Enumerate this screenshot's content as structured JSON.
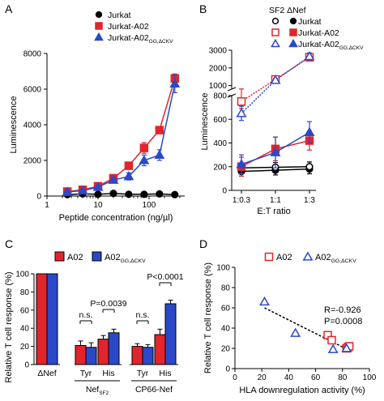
{
  "chart_data": [
    {
      "panel": "A",
      "type": "line",
      "xlabel": "Peptide concentration (ng/µl)",
      "ylabel": "Luminescence",
      "xscale": "log",
      "xlim": [
        1,
        500
      ],
      "ylim": [
        0,
        8000
      ],
      "x_ticks": [
        "1",
        "10",
        "100"
      ],
      "y_ticks": [
        "0",
        "2000",
        "4000",
        "6000",
        "8000"
      ],
      "legend_position": "top-left",
      "series": [
        {
          "name": "Jurkat",
          "marker": "circle-filled",
          "color": "#000000",
          "x": [
            2.5,
            5,
            10,
            20,
            40,
            80,
            160,
            320
          ],
          "y": [
            80,
            120,
            100,
            150,
            100,
            100,
            120,
            80
          ],
          "err": [
            40,
            40,
            40,
            40,
            40,
            40,
            40,
            40
          ]
        },
        {
          "name": "Jurkat-A02",
          "marker": "square-filled",
          "color": "#e2252b",
          "x": [
            2.5,
            5,
            10,
            20,
            40,
            80,
            160,
            320
          ],
          "y": [
            250,
            350,
            550,
            1000,
            1700,
            2700,
            3700,
            6600
          ],
          "err": [
            80,
            80,
            100,
            150,
            200,
            300,
            200,
            250
          ]
        },
        {
          "name": "Jurkat-A02",
          "name_sub": "GG,ΔCKV",
          "marker": "triangle-filled",
          "color": "#2a49c9",
          "x": [
            2.5,
            5,
            10,
            20,
            40,
            80,
            160,
            320
          ],
          "y": [
            230,
            300,
            500,
            900,
            1100,
            2000,
            2300,
            6300
          ],
          "err": [
            80,
            80,
            100,
            150,
            200,
            300,
            300,
            500
          ]
        }
      ]
    },
    {
      "panel": "B",
      "type": "line",
      "xlabel": "E:T ratio",
      "ylabel": "Luminescence",
      "categories": [
        "1:0.3",
        "1:1",
        "1:3"
      ],
      "ylim_lower": [
        0,
        800
      ],
      "ylim_upper": [
        800,
        3000
      ],
      "y_ticks_lower": [
        "0",
        "200",
        "400",
        "600",
        "800"
      ],
      "y_ticks_upper": [
        "1000",
        "2000",
        "3000"
      ],
      "legend_title": "SF2 ΔNef",
      "legend_position": "top-right",
      "series": [
        {
          "name": "Jurkat",
          "marker": "circle",
          "filled": true,
          "color": "#000000",
          "values": [
            160,
            170,
            180
          ],
          "err": [
            40,
            40,
            40
          ]
        },
        {
          "name": "Jurkat",
          "marker": "circle",
          "filled": false,
          "color": "#000000",
          "values": [
            190,
            195,
            200
          ],
          "err": [
            40,
            40,
            40
          ]
        },
        {
          "name": "Jurkat-A02",
          "marker": "square",
          "filled": true,
          "color": "#e2252b",
          "values": [
            200,
            350,
            420
          ],
          "err": [
            80,
            100,
            80
          ]
        },
        {
          "name": "Jurkat-A02",
          "marker": "square",
          "filled": false,
          "color": "#e2252b",
          "values": [
            750,
            1350,
            2600
          ],
          "err": [
            60,
            100,
            200
          ]
        },
        {
          "name": "Jurkat-A02",
          "name_sub": "GG,ΔCKV",
          "marker": "triangle",
          "filled": true,
          "color": "#2a49c9",
          "values": [
            220,
            320,
            490
          ],
          "err": [
            80,
            130,
            90
          ]
        },
        {
          "name": "Jurkat-A02",
          "name_sub": "GG,ΔCKV",
          "marker": "triangle",
          "filled": false,
          "color": "#2a49c9",
          "values": [
            650,
            1300,
            2650
          ],
          "err": [
            60,
            100,
            200
          ]
        }
      ]
    },
    {
      "panel": "C",
      "type": "bar",
      "ylabel": "Relative T cell response (%)",
      "ylim": [
        0,
        100
      ],
      "y_ticks": [
        "0",
        "20",
        "40",
        "60",
        "80",
        "100"
      ],
      "legend_position": "top-center",
      "categories": [
        "ΔNef",
        "Tyr",
        "His",
        "Tyr",
        "His"
      ],
      "groups": [
        {
          "label": "Nef",
          "label_sub": "SF2",
          "from": 1,
          "to": 2
        },
        {
          "label": "CP66-Nef",
          "from": 3,
          "to": 4
        }
      ],
      "series": [
        {
          "name": "A02",
          "color": "#e2252b",
          "values": [
            100,
            21,
            28,
            20,
            33
          ],
          "err": [
            0,
            5,
            4,
            3,
            6
          ]
        },
        {
          "name": "A02",
          "name_sub": "GG,ΔCKV",
          "color": "#2a49c9",
          "values": [
            100,
            19,
            35,
            19,
            67
          ],
          "err": [
            0,
            5,
            4,
            3,
            4
          ]
        }
      ],
      "annotations": [
        {
          "text": "n.s.",
          "category": 1
        },
        {
          "text": "P=0.0039",
          "category": 2
        },
        {
          "text": "n.s.",
          "category": 3
        },
        {
          "text": "P<0.0001",
          "category": 4
        }
      ]
    },
    {
      "panel": "D",
      "type": "scatter",
      "xlabel": "HLA downregulation activity (%)",
      "ylabel": "Relative T cell response (%)",
      "xlim": [
        0,
        100
      ],
      "ylim": [
        0,
        100
      ],
      "x_ticks": [
        "0",
        "20",
        "40",
        "60",
        "80",
        "100"
      ],
      "y_ticks": [
        "0",
        "20",
        "40",
        "60",
        "80",
        "100"
      ],
      "legend_position": "top",
      "series": [
        {
          "name": "A02",
          "marker": "square-open",
          "color": "#e2252b",
          "x": [
            69,
            72,
            83,
            84,
            85
          ],
          "y": [
            33,
            28,
            20,
            21,
            22
          ]
        },
        {
          "name": "A02",
          "name_sub": "GG,ΔCKV",
          "marker": "triangle-open",
          "color": "#2a49c9",
          "x": [
            22,
            45,
            73,
            83
          ],
          "y": [
            66,
            35,
            19,
            20
          ]
        }
      ],
      "regression": {
        "x": [
          22,
          85
        ],
        "y": [
          60,
          18
        ],
        "style": "dashed"
      },
      "annotations": [
        {
          "text": "R=-0.926"
        },
        {
          "text": "P=0.0008"
        }
      ]
    }
  ],
  "panel_labels": [
    "A",
    "B",
    "C",
    "D"
  ]
}
